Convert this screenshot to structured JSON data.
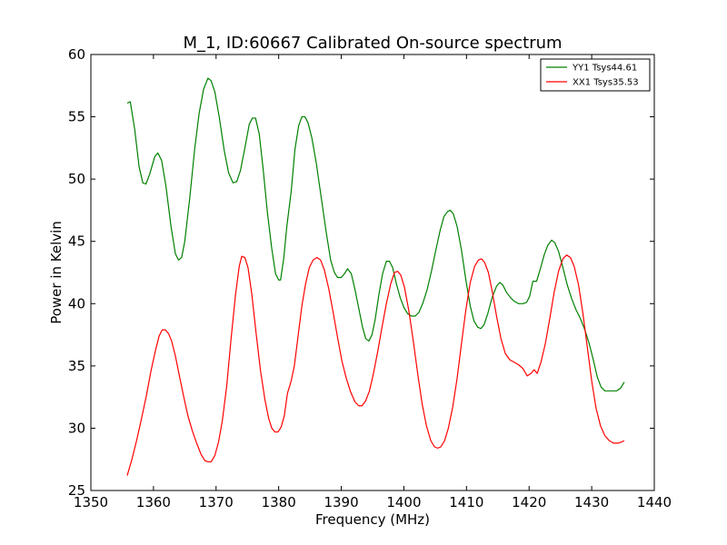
{
  "chart_data": {
    "type": "line",
    "title": "M_1, ID:60667 Calibrated On-source spectrum",
    "xlabel": "Frequency (MHz)",
    "ylabel": "Power in Kelvin",
    "xlim": [
      1350,
      1440
    ],
    "ylim": [
      25,
      60
    ],
    "xticks": [
      1350,
      1360,
      1370,
      1380,
      1390,
      1400,
      1410,
      1420,
      1430,
      1440
    ],
    "yticks": [
      25,
      30,
      35,
      40,
      45,
      50,
      55,
      60
    ],
    "grid": false,
    "legend_position": "top-right",
    "series": [
      {
        "name": "YY1 Tsys44.61",
        "color": "#008000",
        "points": [
          [
            1355.8,
            56.1
          ],
          [
            1356.3,
            56.2
          ],
          [
            1357.0,
            54.0
          ],
          [
            1357.7,
            51.0
          ],
          [
            1358.3,
            49.7
          ],
          [
            1358.8,
            49.6
          ],
          [
            1359.4,
            50.4
          ],
          [
            1360.2,
            51.8
          ],
          [
            1360.7,
            52.1
          ],
          [
            1361.3,
            51.5
          ],
          [
            1362.0,
            49.4
          ],
          [
            1362.8,
            46.2
          ],
          [
            1363.5,
            44.0
          ],
          [
            1364.0,
            43.5
          ],
          [
            1364.5,
            43.7
          ],
          [
            1365.0,
            45.0
          ],
          [
            1365.8,
            48.5
          ],
          [
            1366.6,
            52.5
          ],
          [
            1367.3,
            55.3
          ],
          [
            1368.0,
            57.2
          ],
          [
            1368.7,
            58.1
          ],
          [
            1369.2,
            57.9
          ],
          [
            1369.8,
            57.0
          ],
          [
            1370.5,
            55.0
          ],
          [
            1371.3,
            52.3
          ],
          [
            1372.0,
            50.5
          ],
          [
            1372.7,
            49.7
          ],
          [
            1373.3,
            49.8
          ],
          [
            1373.9,
            50.7
          ],
          [
            1374.6,
            52.5
          ],
          [
            1375.3,
            54.4
          ],
          [
            1375.8,
            54.9
          ],
          [
            1376.3,
            54.9
          ],
          [
            1376.9,
            53.6
          ],
          [
            1377.5,
            50.9
          ],
          [
            1378.2,
            47.3
          ],
          [
            1378.9,
            44.4
          ],
          [
            1379.5,
            42.4
          ],
          [
            1380.0,
            41.9
          ],
          [
            1380.3,
            41.9
          ],
          [
            1380.8,
            43.6
          ],
          [
            1381.3,
            46.2
          ],
          [
            1382.0,
            49.0
          ],
          [
            1382.6,
            52.4
          ],
          [
            1383.2,
            54.3
          ],
          [
            1383.7,
            55.0
          ],
          [
            1384.2,
            55.0
          ],
          [
            1384.7,
            54.5
          ],
          [
            1385.3,
            53.3
          ],
          [
            1386.0,
            51.3
          ],
          [
            1386.8,
            48.5
          ],
          [
            1387.6,
            45.7
          ],
          [
            1388.3,
            43.5
          ],
          [
            1388.9,
            42.5
          ],
          [
            1389.4,
            42.1
          ],
          [
            1390.0,
            42.1
          ],
          [
            1390.5,
            42.4
          ],
          [
            1391.0,
            42.8
          ],
          [
            1391.6,
            42.4
          ],
          [
            1392.2,
            41.1
          ],
          [
            1392.8,
            39.6
          ],
          [
            1393.4,
            38.1
          ],
          [
            1393.9,
            37.2
          ],
          [
            1394.4,
            37.0
          ],
          [
            1394.9,
            37.5
          ],
          [
            1395.4,
            38.7
          ],
          [
            1396.0,
            40.7
          ],
          [
            1396.6,
            42.4
          ],
          [
            1397.2,
            43.4
          ],
          [
            1397.7,
            43.4
          ],
          [
            1398.2,
            42.9
          ],
          [
            1398.8,
            41.6
          ],
          [
            1399.4,
            40.5
          ],
          [
            1400.0,
            39.7
          ],
          [
            1400.6,
            39.2
          ],
          [
            1401.2,
            39.0
          ],
          [
            1401.8,
            39.0
          ],
          [
            1402.4,
            39.3
          ],
          [
            1403.0,
            40.0
          ],
          [
            1403.7,
            41.1
          ],
          [
            1404.4,
            42.6
          ],
          [
            1405.1,
            44.3
          ],
          [
            1405.8,
            45.9
          ],
          [
            1406.4,
            47.0
          ],
          [
            1407.0,
            47.4
          ],
          [
            1407.4,
            47.5
          ],
          [
            1407.9,
            47.2
          ],
          [
            1408.5,
            46.2
          ],
          [
            1409.2,
            44.3
          ],
          [
            1409.9,
            41.9
          ],
          [
            1410.6,
            39.8
          ],
          [
            1411.2,
            38.6
          ],
          [
            1411.8,
            38.1
          ],
          [
            1412.3,
            38.0
          ],
          [
            1412.8,
            38.3
          ],
          [
            1413.4,
            39.2
          ],
          [
            1414.1,
            40.5
          ],
          [
            1414.8,
            41.4
          ],
          [
            1415.3,
            41.7
          ],
          [
            1415.8,
            41.5
          ],
          [
            1416.4,
            40.9
          ],
          [
            1417.0,
            40.5
          ],
          [
            1417.6,
            40.2
          ],
          [
            1418.3,
            40.0
          ],
          [
            1419.0,
            40.0
          ],
          [
            1419.6,
            40.1
          ],
          [
            1420.1,
            40.6
          ],
          [
            1420.6,
            41.8
          ],
          [
            1421.2,
            41.8
          ],
          [
            1421.8,
            42.8
          ],
          [
            1422.4,
            43.9
          ],
          [
            1423.0,
            44.7
          ],
          [
            1423.6,
            45.1
          ],
          [
            1424.1,
            44.9
          ],
          [
            1424.7,
            44.2
          ],
          [
            1425.4,
            42.9
          ],
          [
            1426.1,
            41.5
          ],
          [
            1426.8,
            40.4
          ],
          [
            1427.5,
            39.5
          ],
          [
            1428.2,
            38.8
          ],
          [
            1428.9,
            37.9
          ],
          [
            1429.6,
            36.8
          ],
          [
            1430.3,
            35.4
          ],
          [
            1430.9,
            34.1
          ],
          [
            1431.5,
            33.3
          ],
          [
            1432.1,
            33.0
          ],
          [
            1433.0,
            33.0
          ],
          [
            1434.0,
            33.0
          ],
          [
            1434.6,
            33.2
          ],
          [
            1435.2,
            33.7
          ]
        ]
      },
      {
        "name": "XX1 Tsys35.53",
        "color": "#ff0000",
        "points": [
          [
            1355.8,
            26.2
          ],
          [
            1356.5,
            27.4
          ],
          [
            1357.3,
            29.0
          ],
          [
            1358.1,
            30.8
          ],
          [
            1358.9,
            32.7
          ],
          [
            1359.6,
            34.6
          ],
          [
            1360.3,
            36.2
          ],
          [
            1360.9,
            37.4
          ],
          [
            1361.4,
            37.9
          ],
          [
            1361.9,
            37.9
          ],
          [
            1362.4,
            37.6
          ],
          [
            1362.9,
            37.0
          ],
          [
            1363.5,
            35.8
          ],
          [
            1364.1,
            34.3
          ],
          [
            1364.8,
            32.6
          ],
          [
            1365.5,
            31.0
          ],
          [
            1366.2,
            29.8
          ],
          [
            1366.9,
            28.8
          ],
          [
            1367.6,
            27.9
          ],
          [
            1368.2,
            27.4
          ],
          [
            1368.7,
            27.3
          ],
          [
            1369.2,
            27.3
          ],
          [
            1369.8,
            27.8
          ],
          [
            1370.4,
            28.9
          ],
          [
            1371.0,
            30.6
          ],
          [
            1371.7,
            33.4
          ],
          [
            1372.4,
            37.2
          ],
          [
            1373.1,
            40.7
          ],
          [
            1373.7,
            43.0
          ],
          [
            1374.1,
            43.8
          ],
          [
            1374.6,
            43.7
          ],
          [
            1375.1,
            42.9
          ],
          [
            1375.7,
            40.8
          ],
          [
            1376.4,
            37.6
          ],
          [
            1377.1,
            34.6
          ],
          [
            1377.8,
            32.3
          ],
          [
            1378.4,
            30.8
          ],
          [
            1378.9,
            30.0
          ],
          [
            1379.4,
            29.7
          ],
          [
            1379.9,
            29.7
          ],
          [
            1380.4,
            30.1
          ],
          [
            1380.9,
            31.0
          ],
          [
            1381.4,
            32.8
          ],
          [
            1382.0,
            33.8
          ],
          [
            1382.5,
            35.0
          ],
          [
            1383.1,
            37.4
          ],
          [
            1383.7,
            39.8
          ],
          [
            1384.3,
            41.6
          ],
          [
            1384.9,
            42.9
          ],
          [
            1385.5,
            43.5
          ],
          [
            1386.1,
            43.7
          ],
          [
            1386.7,
            43.5
          ],
          [
            1387.3,
            42.7
          ],
          [
            1388.0,
            41.2
          ],
          [
            1388.7,
            39.3
          ],
          [
            1389.4,
            37.3
          ],
          [
            1390.1,
            35.4
          ],
          [
            1390.8,
            34.0
          ],
          [
            1391.5,
            32.9
          ],
          [
            1392.2,
            32.1
          ],
          [
            1392.8,
            31.8
          ],
          [
            1393.3,
            31.8
          ],
          [
            1393.9,
            32.2
          ],
          [
            1394.5,
            33.0
          ],
          [
            1395.1,
            34.3
          ],
          [
            1395.8,
            36.1
          ],
          [
            1396.5,
            38.1
          ],
          [
            1397.2,
            40.0
          ],
          [
            1397.9,
            41.6
          ],
          [
            1398.5,
            42.5
          ],
          [
            1399.0,
            42.6
          ],
          [
            1399.5,
            42.3
          ],
          [
            1400.1,
            41.3
          ],
          [
            1400.8,
            39.4
          ],
          [
            1401.5,
            37.0
          ],
          [
            1402.2,
            34.4
          ],
          [
            1402.9,
            32.0
          ],
          [
            1403.6,
            30.2
          ],
          [
            1404.3,
            29.0
          ],
          [
            1404.9,
            28.5
          ],
          [
            1405.4,
            28.4
          ],
          [
            1405.9,
            28.5
          ],
          [
            1406.5,
            29.0
          ],
          [
            1407.1,
            30.0
          ],
          [
            1407.8,
            31.7
          ],
          [
            1408.5,
            34.0
          ],
          [
            1409.2,
            36.8
          ],
          [
            1409.9,
            39.5
          ],
          [
            1410.6,
            41.7
          ],
          [
            1411.3,
            43.0
          ],
          [
            1411.9,
            43.5
          ],
          [
            1412.4,
            43.6
          ],
          [
            1412.9,
            43.3
          ],
          [
            1413.5,
            42.5
          ],
          [
            1414.1,
            41.0
          ],
          [
            1414.8,
            39.0
          ],
          [
            1415.5,
            37.2
          ],
          [
            1416.2,
            36.0
          ],
          [
            1416.9,
            35.5
          ],
          [
            1417.6,
            35.3
          ],
          [
            1418.3,
            35.1
          ],
          [
            1419.0,
            34.8
          ],
          [
            1419.7,
            34.2
          ],
          [
            1420.3,
            34.4
          ],
          [
            1420.8,
            34.7
          ],
          [
            1421.3,
            34.4
          ],
          [
            1421.9,
            35.3
          ],
          [
            1422.6,
            36.8
          ],
          [
            1423.3,
            38.8
          ],
          [
            1424.0,
            40.9
          ],
          [
            1424.7,
            42.6
          ],
          [
            1425.4,
            43.6
          ],
          [
            1426.0,
            43.9
          ],
          [
            1426.6,
            43.7
          ],
          [
            1427.2,
            43.0
          ],
          [
            1427.9,
            41.5
          ],
          [
            1428.6,
            39.2
          ],
          [
            1429.3,
            36.5
          ],
          [
            1430.0,
            33.8
          ],
          [
            1430.7,
            31.6
          ],
          [
            1431.4,
            30.2
          ],
          [
            1432.1,
            29.4
          ],
          [
            1432.8,
            29.0
          ],
          [
            1433.5,
            28.8
          ],
          [
            1434.2,
            28.8
          ],
          [
            1434.8,
            28.9
          ],
          [
            1435.2,
            29.0
          ]
        ]
      }
    ]
  }
}
